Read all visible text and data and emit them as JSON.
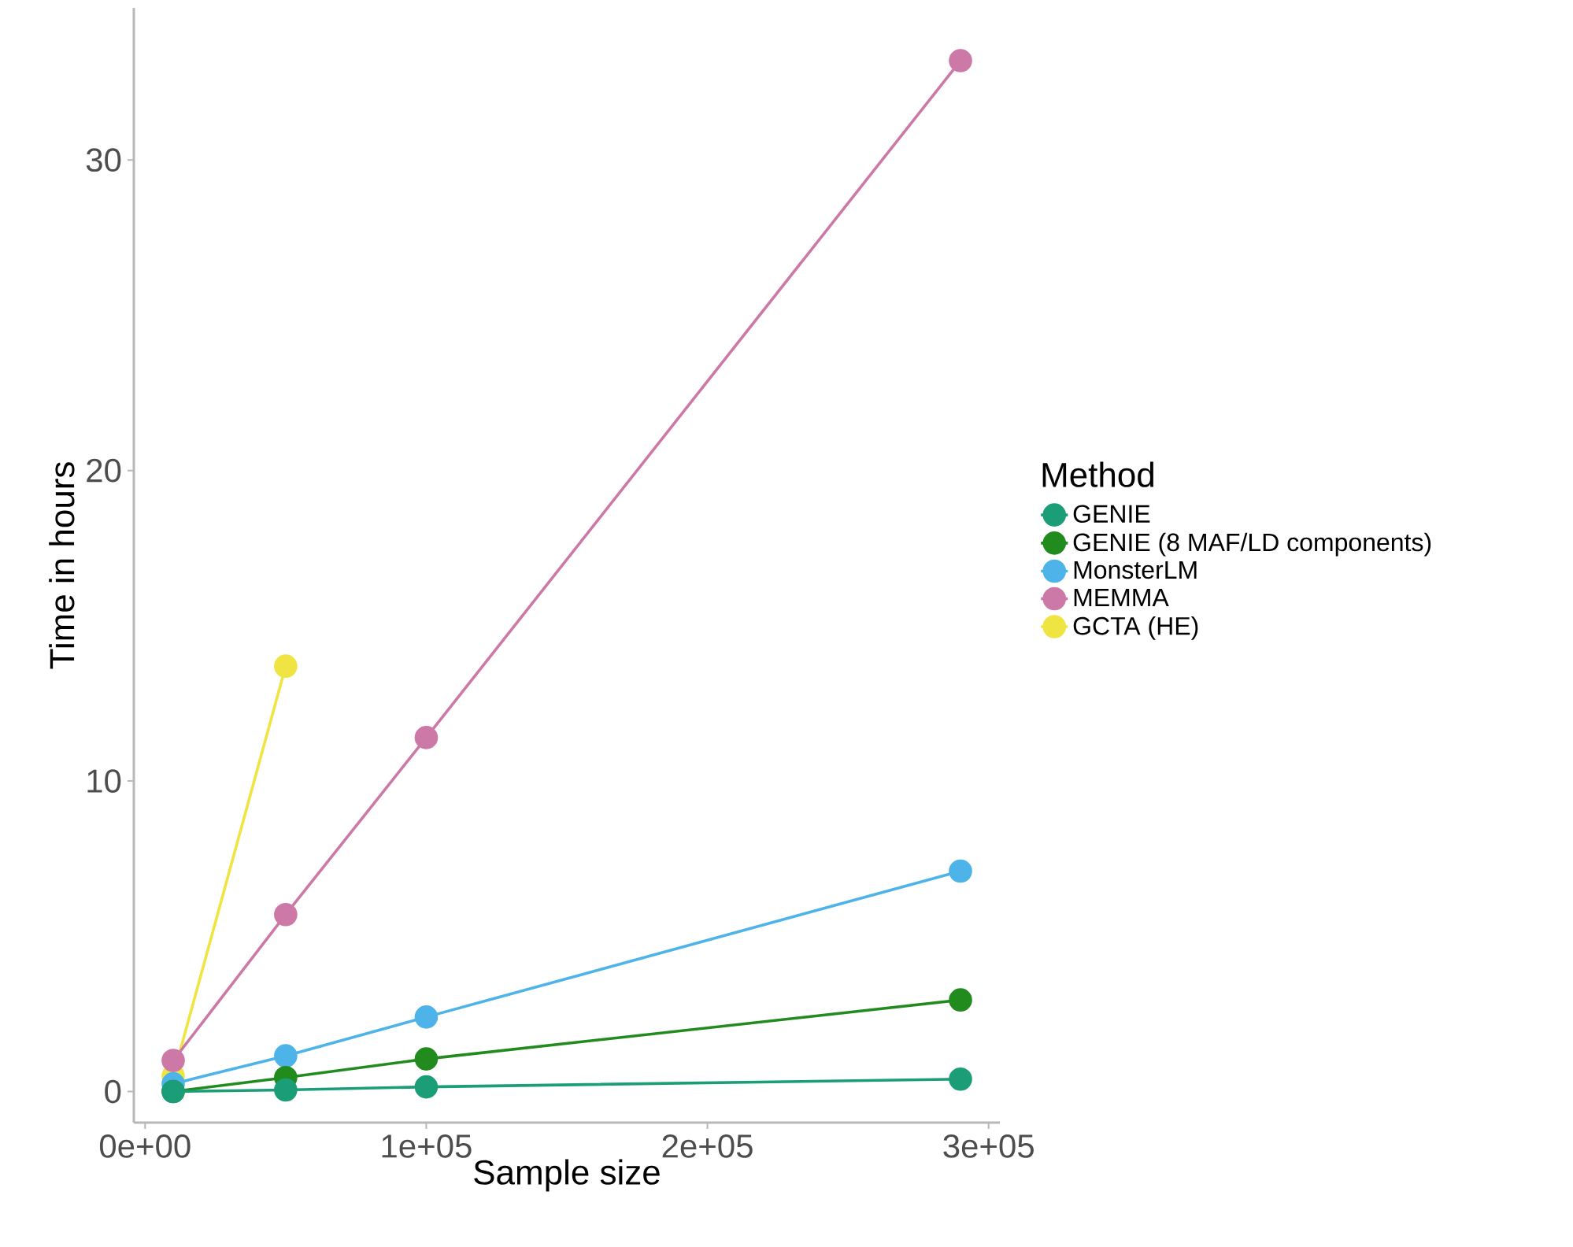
{
  "chart_data": {
    "type": "line",
    "xlabel": "Sample size",
    "ylabel": "Time in hours",
    "legend_title": "Method",
    "xlim": [
      -4000,
      304000
    ],
    "ylim": [
      -1,
      34.9
    ],
    "xticks": [
      {
        "value": 0,
        "label": "0e+00"
      },
      {
        "value": 100000,
        "label": "1e+05"
      },
      {
        "value": 200000,
        "label": "2e+05"
      },
      {
        "value": 300000,
        "label": "3e+05"
      }
    ],
    "yticks": [
      0,
      10,
      20,
      30
    ],
    "grid": false,
    "legend": "right",
    "marker": "circle",
    "line_style": "solid",
    "series": [
      {
        "name": "GENIE",
        "color": "#1b9e77",
        "x": [
          10000,
          50000,
          100000,
          290000
        ],
        "values": [
          0.0,
          0.05,
          0.15,
          0.4
        ]
      },
      {
        "name": "GENIE (8 MAF/LD components)",
        "color": "#228b1e",
        "x": [
          10000,
          50000,
          100000,
          290000
        ],
        "values": [
          0.0,
          0.45,
          1.05,
          2.95
        ]
      },
      {
        "name": "MonsterLM",
        "color": "#4db3e8",
        "x": [
          10000,
          50000,
          100000,
          290000
        ],
        "values": [
          0.25,
          1.15,
          2.4,
          7.1
        ]
      },
      {
        "name": "MEMMA",
        "color": "#cc79a7",
        "x": [
          10000,
          50000,
          100000,
          290000
        ],
        "values": [
          1.0,
          5.7,
          11.4,
          33.2
        ]
      },
      {
        "name": "GCTA (HE)",
        "color": "#f0e442",
        "x": [
          10000,
          50000
        ],
        "values": [
          0.5,
          13.7
        ]
      }
    ]
  }
}
